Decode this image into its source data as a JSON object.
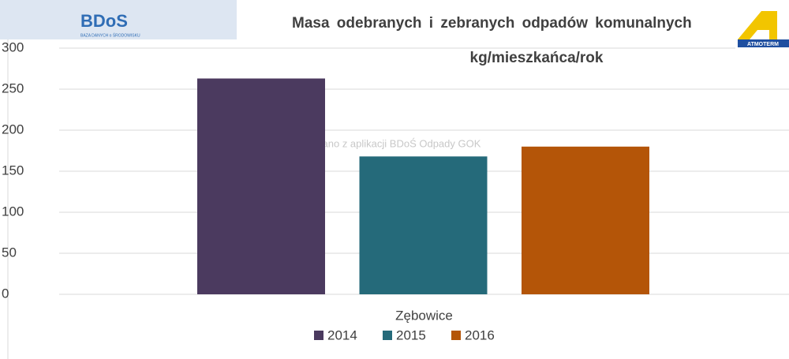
{
  "chart_data": {
    "type": "bar",
    "title": "Masa odebranych i zebranych odpadów komunalnych",
    "subtitle": "kg/mieszkańca/rok",
    "watermark": "Wygenerowano z aplikacji BDoŚ Odpady GOK",
    "logo_left": "BDoS",
    "logo_left_caption": "BAZA DANYCH o ŚRODOWISKU",
    "logo_right": "ATMOTERM",
    "categories": [
      "Zębowice"
    ],
    "series": [
      {
        "name": "2014",
        "color": "#4b3a5f",
        "values": [
          263
        ]
      },
      {
        "name": "2015",
        "color": "#256a7a",
        "values": [
          168
        ]
      },
      {
        "name": "2016",
        "color": "#b45508",
        "values": [
          180
        ]
      }
    ],
    "ylim": [
      0,
      300
    ],
    "yticks": [
      0,
      50,
      100,
      150,
      200,
      250,
      300
    ],
    "grid": true,
    "legend": "bottom"
  }
}
